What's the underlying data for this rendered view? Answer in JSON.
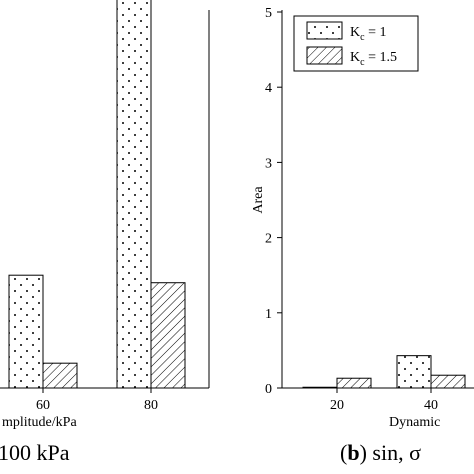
{
  "chart_data": [
    {
      "type": "bar",
      "panel": "left",
      "categories": [
        "60",
        "80"
      ],
      "series": [
        {
          "name": "K_c = 1",
          "values": [
            1.5,
            5.4
          ]
        },
        {
          "name": "K_c = 1.5",
          "values": [
            0.33,
            1.4
          ]
        }
      ],
      "xlabel": "mplitude/kPa",
      "caption": "100 kPa",
      "legend": "none visible",
      "grid": false
    },
    {
      "type": "bar",
      "panel": "right",
      "categories": [
        "20",
        "40"
      ],
      "series": [
        {
          "name": "K_c = 1",
          "values": [
            0.01,
            0.43
          ]
        },
        {
          "name": "K_c = 1.5",
          "values": [
            0.13,
            0.17
          ]
        }
      ],
      "ylabel": "Area",
      "xlabel": "Dynamic",
      "ylim": [
        0,
        5
      ],
      "yticks": [
        "0",
        "1",
        "2",
        "3",
        "4",
        "5"
      ],
      "legend_position": "top-left",
      "legend": [
        {
          "label": "K",
          "sub": "c",
          "rest": " = 1",
          "pattern": "dots"
        },
        {
          "label": "K",
          "sub": "c",
          "rest": " = 1.5",
          "pattern": "hatch"
        }
      ],
      "caption": {
        "paren_open": "(",
        "letter": "b",
        "paren_close": ")",
        "text": " sin, σ"
      },
      "grid": false
    }
  ]
}
